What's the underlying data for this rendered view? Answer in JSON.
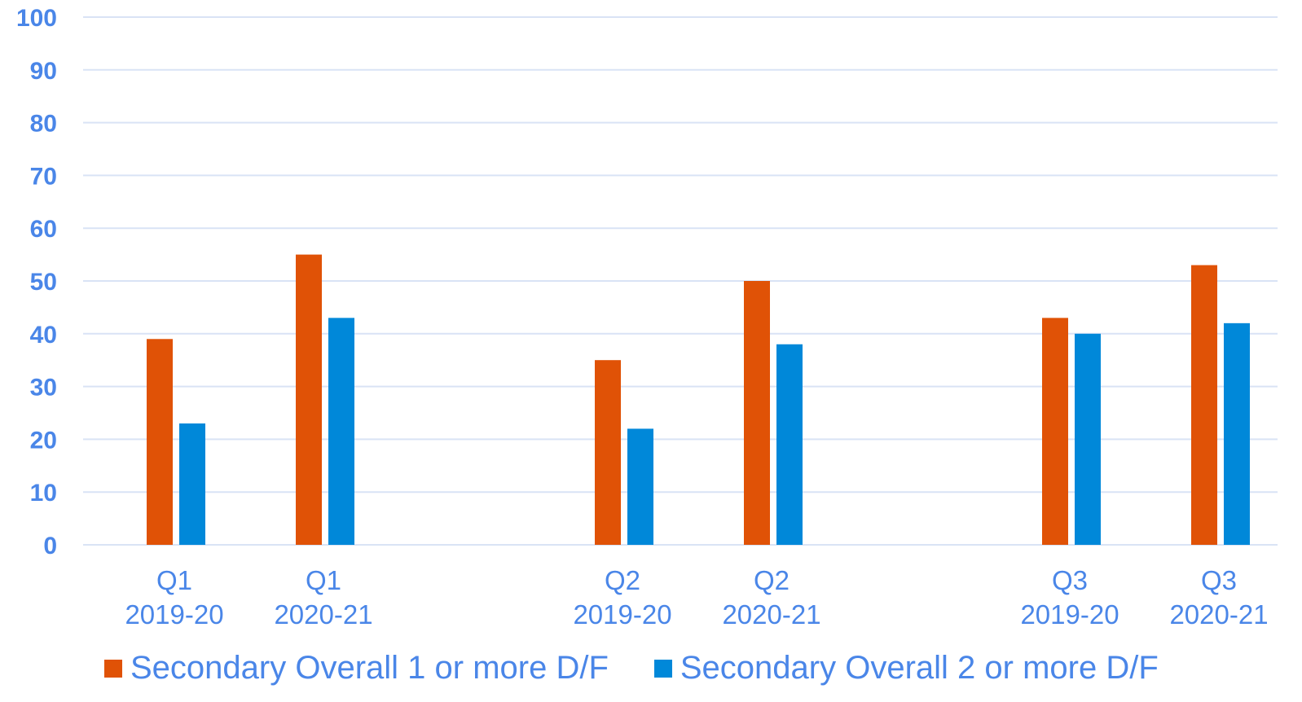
{
  "chart_data": {
    "type": "bar",
    "title": "",
    "xlabel": "",
    "ylabel": "",
    "ylim": [
      0,
      100
    ],
    "yticks": [
      "0",
      "10",
      "20",
      "30",
      "40",
      "50",
      "60",
      "70",
      "80",
      "90",
      "100"
    ],
    "grid": true,
    "legend_position": "bottom",
    "categories": [
      [
        "Q1",
        "2019-20"
      ],
      [
        "Q1",
        "2020-21"
      ],
      [
        "Q2",
        "2019-20"
      ],
      [
        "Q2",
        "2020-21"
      ],
      [
        "Q3",
        "2019-20"
      ],
      [
        "Q3",
        "2020-21"
      ]
    ],
    "series": [
      {
        "name": "Secondary Overall 1 or more D/F",
        "color": "#e05206",
        "values": [
          39,
          55,
          35,
          50,
          43,
          53
        ]
      },
      {
        "name": "Secondary Overall 2 or more D/F",
        "color": "#0088d9",
        "values": [
          23,
          43,
          22,
          38,
          40,
          42
        ]
      }
    ],
    "colors": {
      "axis_text": "#4a86e8",
      "gridline": "#d9e3f5"
    }
  }
}
